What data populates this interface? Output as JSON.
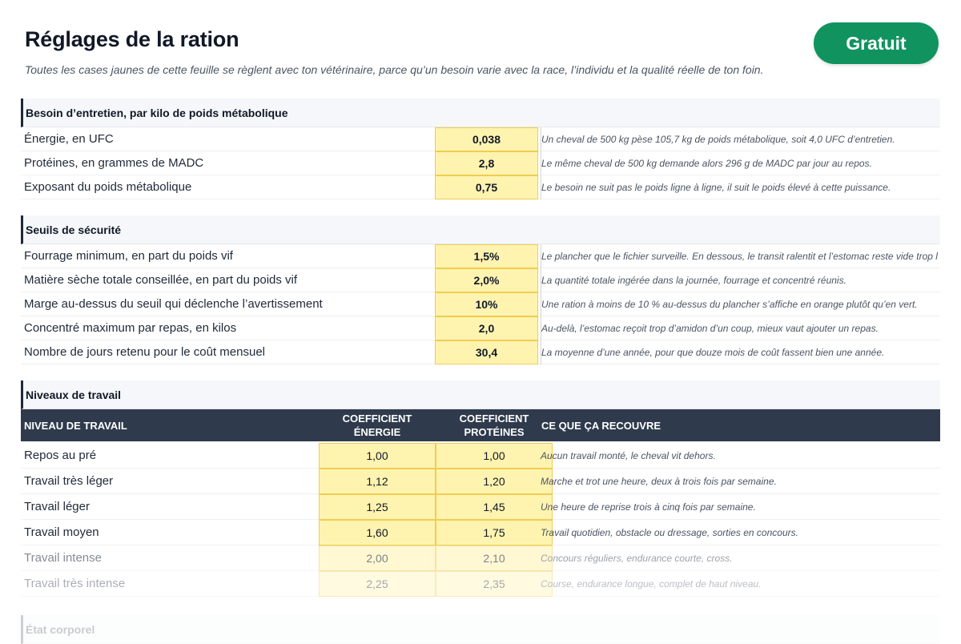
{
  "page": {
    "title": "Réglages de la ration",
    "subtitle": "Toutes les cases jaunes de cette feuille se règlent avec ton vétérinaire, parce qu’un besoin varie avec la race, l’individu et la qualité réelle de ton foin.",
    "badge": "Gratuit"
  },
  "colors": {
    "accent_green": "#10935f",
    "input_yellow": "#fff3b0",
    "header_dark": "#2f3b4c"
  },
  "sections": {
    "besoin": {
      "title": "Besoin d’entretien, par kilo de poids métabolique",
      "rows": [
        {
          "label": "Énergie, en UFC",
          "value": "0,038",
          "note": "Un cheval de 500 kg pèse 105,7 kg de poids métabolique, soit 4,0 UFC d’entretien."
        },
        {
          "label": "Protéines, en grammes de MADC",
          "value": "2,8",
          "note": "Le même cheval de 500 kg demande alors 296 g de MADC par jour au repos."
        },
        {
          "label": "Exposant du poids métabolique",
          "value": "0,75",
          "note": "Le besoin ne suit pas le poids ligne à ligne, il suit le poids élevé à cette puissance."
        }
      ]
    },
    "seuils": {
      "title": "Seuils de sécurité",
      "rows": [
        {
          "label": "Fourrage minimum, en part du poids vif",
          "value": "1,5%",
          "note": "Le plancher que le fichier surveille. En dessous, le transit ralentit et l’estomac reste vide trop l"
        },
        {
          "label": "Matière sèche totale conseillée, en part du poids vif",
          "value": "2,0%",
          "note": "La quantité totale ingérée dans la journée, fourrage et concentré réunis."
        },
        {
          "label": "Marge au-dessus du seuil qui déclenche l’avertissement",
          "value": "10%",
          "note": "Une ration à moins de 10 % au-dessus du plancher s’affiche en orange plutôt qu’en vert."
        },
        {
          "label": "Concentré maximum par repas, en kilos",
          "value": "2,0",
          "note": "Au-delà, l’estomac reçoit trop d’amidon d’un coup, mieux vaut ajouter un repas."
        },
        {
          "label": "Nombre de jours retenu pour le coût mensuel",
          "value": "30,4",
          "note": "La moyenne d’une année, pour que douze mois de coût fassent bien une année."
        }
      ]
    },
    "niveaux": {
      "title": "Niveaux de travail",
      "columns": {
        "niveau": "NIVEAU DE TRAVAIL",
        "energie_1": "COEFFICIENT",
        "energie_2": "ÉNERGIE",
        "proteines_1": "COEFFICIENT",
        "proteines_2": "PROTÉINES",
        "recouvre": "CE QUE ÇA RECOUVRE"
      },
      "rows": [
        {
          "label": "Repos au pré",
          "energie": "1,00",
          "proteines": "1,00",
          "note": "Aucun travail monté, le cheval vit dehors."
        },
        {
          "label": "Travail très léger",
          "energie": "1,12",
          "proteines": "1,20",
          "note": "Marche et trot une heure, deux à trois fois par semaine."
        },
        {
          "label": "Travail léger",
          "energie": "1,25",
          "proteines": "1,45",
          "note": "Une heure de reprise trois à cinq fois par semaine."
        },
        {
          "label": "Travail moyen",
          "energie": "1,60",
          "proteines": "1,75",
          "note": "Travail quotidien, obstacle ou dressage, sorties en concours."
        },
        {
          "label": "Travail intense",
          "energie": "2,00",
          "proteines": "2,10",
          "note": "Concours réguliers, endurance courte, cross."
        },
        {
          "label": "Travail très intense",
          "energie": "2,25",
          "proteines": "2,35",
          "note": "Course, endurance longue, complet de haut niveau."
        }
      ]
    },
    "etat": {
      "title": "État corporel"
    }
  }
}
